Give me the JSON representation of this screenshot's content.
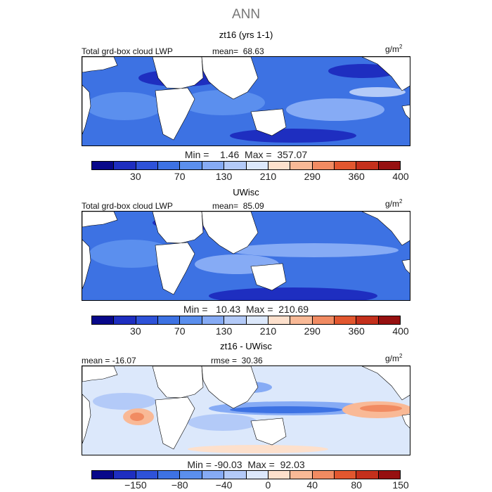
{
  "title": "ANN",
  "panels": [
    {
      "subtitle": "zt16 (yrs 1-1)",
      "left_label": "Total grd-box cloud LWP",
      "mid_label": "mean=  68.63",
      "units_base": "g/m",
      "units_exp": "2",
      "stats": "Min =    1.46  Max =  357.07",
      "colorbar": {
        "colors": [
          "#08088a",
          "#1e2ec0",
          "#2e52d8",
          "#3d72e3",
          "#5b8fee",
          "#86abf5",
          "#b3caf8",
          "#dce8fb",
          "#fde0cc",
          "#f9b996",
          "#f18b62",
          "#e2572f",
          "#c4301c",
          "#961010"
        ],
        "ticks": [
          "30",
          "70",
          "130",
          "210",
          "290",
          "360",
          "400"
        ]
      }
    },
    {
      "subtitle": "UWisc",
      "left_label": "Total grd-box cloud LWP",
      "mid_label": "mean=  85.09",
      "units_base": "g/m",
      "units_exp": "2",
      "stats": "Min =   10.43  Max =  210.69",
      "colorbar": {
        "colors": [
          "#08088a",
          "#1e2ec0",
          "#2e52d8",
          "#3d72e3",
          "#5b8fee",
          "#86abf5",
          "#b3caf8",
          "#dce8fb",
          "#fde0cc",
          "#f9b996",
          "#f18b62",
          "#e2572f",
          "#c4301c",
          "#961010"
        ],
        "ticks": [
          "30",
          "70",
          "130",
          "210",
          "290",
          "360",
          "400"
        ]
      }
    },
    {
      "subtitle": "zt16 - UWisc",
      "left_label": "mean = -16.07",
      "mid_label": "rmse =  30.36",
      "units_base": "g/m",
      "units_exp": "2",
      "stats": "Min = -90.03  Max =  92.03",
      "colorbar": {
        "colors": [
          "#08088a",
          "#1e2ec0",
          "#2e52d8",
          "#3d72e3",
          "#5b8fee",
          "#86abf5",
          "#b3caf8",
          "#dce8fb",
          "#fde0cc",
          "#f9b996",
          "#f18b62",
          "#e2572f",
          "#c4301c",
          "#961010"
        ],
        "ticks": [
          "−150",
          "−80",
          "−40",
          "0",
          "40",
          "80",
          "150"
        ]
      }
    }
  ],
  "map_colors": {
    "ocean_high_lwp": "#3d72e3",
    "ocean_low_lwp": "#86abf5",
    "ocean_very_high": "#1e2ec0",
    "diff_background": "#dce8fb",
    "diff_positive": "#f18b62",
    "diff_negative": "#3d72e3",
    "land": "#ffffff"
  }
}
